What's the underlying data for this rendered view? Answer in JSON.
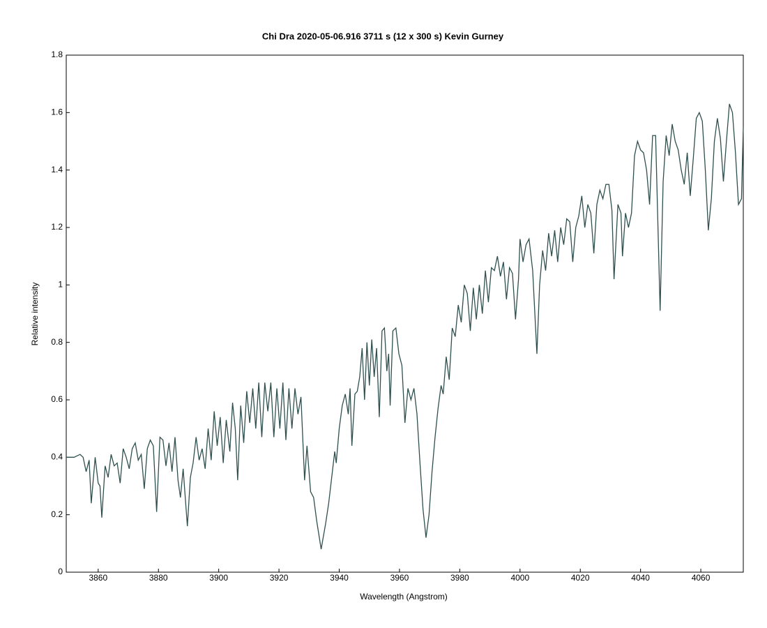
{
  "chart_data": {
    "type": "line",
    "title": "Chi Dra    2020-05-06.916   3711 s  (12 x 300 s)   Kevin Gurney",
    "x_label": "Wavelength (Angstrom)",
    "y_label": "Relative intensity",
    "xlim": [
      3849.4,
      4074.1
    ],
    "ylim": [
      0,
      1.8
    ],
    "xticks": [
      3860,
      3880,
      3900,
      3920,
      3940,
      3960,
      3980,
      4000,
      4020,
      4040,
      4060
    ],
    "yticks": [
      0,
      0.2,
      0.4,
      0.6,
      0.8,
      1,
      1.2,
      1.4,
      1.6,
      1.8
    ],
    "x": [
      3849.4,
      3852,
      3854,
      3855,
      3856,
      3857,
      3857.7,
      3859,
      3860,
      3860.6,
      3861.2,
      3862.3,
      3863.3,
      3864.3,
      3865.3,
      3866.3,
      3867.3,
      3868.3,
      3869.3,
      3870.3,
      3871.3,
      3872.3,
      3873.3,
      3874.3,
      3875.3,
      3876.3,
      3877.3,
      3878.3,
      3879.4,
      3880.5,
      3881.5,
      3882.5,
      3883.5,
      3884.5,
      3885.5,
      3886.5,
      3887.3,
      3888.2,
      3889.6,
      3890.6,
      3891.5,
      3892.5,
      3893.5,
      3894.5,
      3895.5,
      3896.5,
      3897.5,
      3898.5,
      3899.5,
      3900.5,
      3901.5,
      3902.5,
      3903.7,
      3904.6,
      3905.5,
      3906.3,
      3907.3,
      3908.3,
      3909.3,
      3910.3,
      3911.3,
      3912.3,
      3913.3,
      3914.3,
      3915.3,
      3916.3,
      3917.3,
      3918.3,
      3919.3,
      3920.3,
      3921.3,
      3922.3,
      3923.3,
      3924.3,
      3925.3,
      3926.3,
      3927.3,
      3928.5,
      3929.3,
      3930.5,
      3931.5,
      3932.5,
      3934,
      3935.5,
      3936.5,
      3937.5,
      3938.5,
      3939,
      3940,
      3941,
      3942,
      3943,
      3943.6,
      3944.2,
      3945.2,
      3946,
      3946.8,
      3947.6,
      3948.4,
      3949.2,
      3950,
      3950.8,
      3951.6,
      3952.4,
      3953.3,
      3954.2,
      3955,
      3955.8,
      3956.4,
      3956.9,
      3957.8,
      3958.8,
      3959.8,
      3960.8,
      3961.8,
      3962.8,
      3963.8,
      3964.8,
      3965.8,
      3966.8,
      3967.8,
      3968.8,
      3969.8,
      3970.8,
      3971.8,
      3972.8,
      3973.8,
      3974.5,
      3975.5,
      3976.5,
      3977.5,
      3978.5,
      3979.5,
      3980.5,
      3981.5,
      3982.5,
      3983.5,
      3984.5,
      3985.5,
      3986.5,
      3987.5,
      3988.5,
      3989.5,
      3990.5,
      3991.5,
      3992.5,
      3993.5,
      3994.5,
      3995.5,
      3996.5,
      3997.5,
      3998.5,
      3999.5,
      4000,
      4001,
      4002,
      4003,
      4004.2,
      4005.6,
      4006.5,
      4007.5,
      4008.5,
      4009.5,
      4010.5,
      4011.5,
      4012.5,
      4013.5,
      4014.5,
      4015.5,
      4016.5,
      4017.5,
      4018.5,
      4019.5,
      4020.5,
      4021.5,
      4022.5,
      4023.5,
      4024.5,
      4025.5,
      4026.5,
      4027.5,
      4028.5,
      4029.5,
      4030.5,
      4031.2,
      4032.5,
      4033.5,
      4034,
      4035,
      4036,
      4037,
      4038,
      4039,
      4040,
      4041,
      4042,
      4043,
      4044,
      4045,
      4046.5,
      4047.5,
      4048.5,
      4049.5,
      4050.5,
      4051.5,
      4052.5,
      4053.5,
      4054.5,
      4055.5,
      4056.5,
      4057.5,
      4058.5,
      4059.5,
      4060.5,
      4061.5,
      4062.5,
      4063.5,
      4064.5,
      4065.5,
      4066.5,
      4067.5,
      4068.5,
      4069.5,
      4070.5,
      4071.5,
      4072.5,
      4073.5,
      4074.1
    ],
    "series": [
      {
        "color": "#2f4f4f",
        "values": [
          0.4,
          0.4,
          0.41,
          0.4,
          0.35,
          0.39,
          0.24,
          0.4,
          0.31,
          0.3,
          0.19,
          0.37,
          0.33,
          0.41,
          0.37,
          0.38,
          0.31,
          0.43,
          0.4,
          0.36,
          0.43,
          0.45,
          0.39,
          0.41,
          0.29,
          0.43,
          0.46,
          0.44,
          0.21,
          0.47,
          0.46,
          0.37,
          0.45,
          0.35,
          0.47,
          0.32,
          0.26,
          0.36,
          0.16,
          0.33,
          0.38,
          0.47,
          0.39,
          0.43,
          0.36,
          0.5,
          0.39,
          0.56,
          0.44,
          0.54,
          0.38,
          0.53,
          0.42,
          0.59,
          0.5,
          0.32,
          0.58,
          0.45,
          0.63,
          0.52,
          0.64,
          0.5,
          0.66,
          0.47,
          0.66,
          0.56,
          0.66,
          0.47,
          0.64,
          0.5,
          0.66,
          0.46,
          0.64,
          0.5,
          0.64,
          0.55,
          0.61,
          0.32,
          0.44,
          0.28,
          0.26,
          0.18,
          0.08,
          0.17,
          0.24,
          0.33,
          0.42,
          0.38,
          0.5,
          0.58,
          0.62,
          0.55,
          0.64,
          0.44,
          0.62,
          0.63,
          0.68,
          0.78,
          0.6,
          0.8,
          0.65,
          0.81,
          0.68,
          0.78,
          0.54,
          0.84,
          0.85,
          0.7,
          0.76,
          0.58,
          0.84,
          0.85,
          0.76,
          0.72,
          0.52,
          0.64,
          0.6,
          0.64,
          0.55,
          0.38,
          0.22,
          0.12,
          0.2,
          0.35,
          0.47,
          0.57,
          0.65,
          0.62,
          0.75,
          0.67,
          0.85,
          0.82,
          0.93,
          0.87,
          1.0,
          0.97,
          0.84,
          0.99,
          0.88,
          1.0,
          0.9,
          1.05,
          0.94,
          1.06,
          1.05,
          1.1,
          1.03,
          1.08,
          0.95,
          1.06,
          1.04,
          0.88,
          1.02,
          1.16,
          1.08,
          1.14,
          1.16,
          1.05,
          0.76,
          1.0,
          1.12,
          1.05,
          1.18,
          1.1,
          1.19,
          1.08,
          1.2,
          1.14,
          1.23,
          1.22,
          1.08,
          1.2,
          1.24,
          1.31,
          1.2,
          1.28,
          1.25,
          1.11,
          1.28,
          1.33,
          1.3,
          1.35,
          1.35,
          1.26,
          1.02,
          1.28,
          1.25,
          1.1,
          1.25,
          1.2,
          1.25,
          1.45,
          1.5,
          1.47,
          1.46,
          1.4,
          1.28,
          1.52,
          1.52,
          0.91,
          1.36,
          1.52,
          1.45,
          1.56,
          1.5,
          1.47,
          1.4,
          1.35,
          1.46,
          1.31,
          1.44,
          1.58,
          1.6,
          1.57,
          1.4,
          1.19,
          1.3,
          1.5,
          1.58,
          1.51,
          1.36,
          1.5,
          1.63,
          1.6,
          1.46,
          1.28,
          1.3,
          1.55
        ]
      }
    ]
  }
}
